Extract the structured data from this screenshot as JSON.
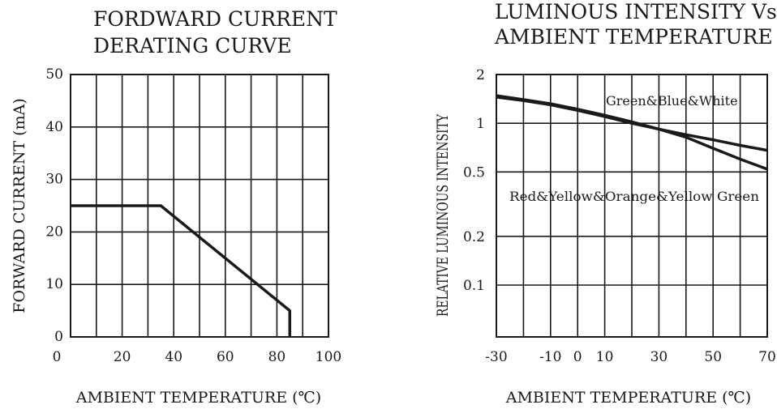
{
  "chart_data": [
    {
      "type": "line",
      "title_lines": [
        "FORDWARD CURRENT",
        "DERATING CURVE"
      ],
      "xlabel": "AMBIENT TEMPERATURE (℃)",
      "ylabel": "FORWARD CURRENT (mA)",
      "x_ticks": [
        "0",
        "20",
        "40",
        "60",
        "80",
        "100"
      ],
      "y_ticks": [
        "0",
        "10",
        "20",
        "30",
        "40",
        "50"
      ],
      "xlim": [
        0,
        100
      ],
      "ylim": [
        0,
        50
      ],
      "grid": true,
      "series": [
        {
          "x": [
            0,
            35,
            85,
            85
          ],
          "y": [
            25,
            25,
            5,
            0
          ]
        }
      ]
    },
    {
      "type": "line",
      "title_lines": [
        "LUMINOUS  INTENSITY Vs",
        "AMBIENT  TEMPERATURE"
      ],
      "xlabel": "AMBIENT TEMPERATURE (℃)",
      "ylabel": "RELATIVE LUMINOUS INTENSITY",
      "x_ticks": [
        "-30",
        "-10",
        "0",
        "10",
        "30",
        "50",
        "70"
      ],
      "y_ticks": [
        "2",
        "1",
        "0.5",
        "0.2",
        "0.1"
      ],
      "xlim": [
        -30,
        70
      ],
      "y_scale": "log",
      "grid": true,
      "series": [
        {
          "name": "Green&Blue&White",
          "x": [
            -30,
            -20,
            -10,
            0,
            10,
            20,
            30,
            40,
            50,
            60,
            70
          ],
          "y": [
            1.45,
            1.38,
            1.3,
            1.2,
            1.1,
            1.0,
            0.92,
            0.85,
            0.79,
            0.73,
            0.68
          ]
        },
        {
          "name": "Red&Yellow&Orange&Yellow Green",
          "x": [
            -30,
            -20,
            -10,
            0,
            10,
            20,
            30,
            40,
            50,
            60,
            70
          ],
          "y": [
            1.48,
            1.4,
            1.32,
            1.22,
            1.12,
            1.02,
            0.92,
            0.82,
            0.7,
            0.6,
            0.52
          ]
        }
      ]
    }
  ]
}
